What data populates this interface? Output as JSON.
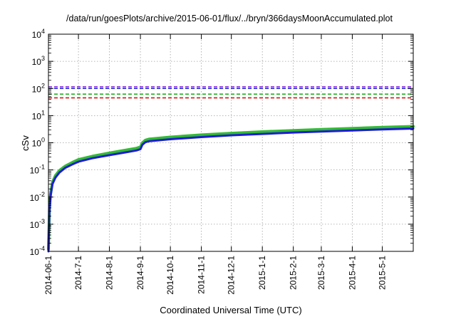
{
  "chart_data": {
    "type": "line",
    "title": "/data/run/goesPlots/archive/2015-06-01/flux/../bryn/366daysMoonAccumulated.plot",
    "xlabel": "Coordinated Universal Time (UTC)",
    "ylabel": "cSv",
    "yscale": "log",
    "ylim": [
      0.0001,
      10000
    ],
    "y_ticks": [
      {
        "base": "10",
        "exp": "-4",
        "value": 0.0001
      },
      {
        "base": "10",
        "exp": "-3",
        "value": 0.001
      },
      {
        "base": "10",
        "exp": "-2",
        "value": 0.01
      },
      {
        "base": "10",
        "exp": "-1",
        "value": 0.1
      },
      {
        "base": "10",
        "exp": "0",
        "value": 1
      },
      {
        "base": "10",
        "exp": "1",
        "value": 10
      },
      {
        "base": "10",
        "exp": "2",
        "value": 100
      },
      {
        "base": "10",
        "exp": "3",
        "value": 1000
      },
      {
        "base": "10",
        "exp": "4",
        "value": 10000
      }
    ],
    "xlim": [
      "2014-06-01",
      "2015-06-01"
    ],
    "x_ticks": [
      "2014-06-1",
      "2014-7-1",
      "2014-8-1",
      "2014-9-1",
      "2014-10-1",
      "2014-11-1",
      "2014-12-1",
      "2015-1-1",
      "2015-2-1",
      "2015-3-1",
      "2015-4-1",
      "2015-5-1"
    ],
    "x_tick_dates": [
      "2014-06-01",
      "2014-07-01",
      "2014-08-01",
      "2014-09-01",
      "2014-10-01",
      "2014-11-01",
      "2014-12-01",
      "2015-01-01",
      "2015-02-01",
      "2015-03-01",
      "2015-04-01",
      "2015-05-01"
    ],
    "grid": true,
    "reference_lines": [
      {
        "y": 115,
        "color": "#8a2be2",
        "style": "dashed"
      },
      {
        "y": 100,
        "color": "#1f1fcf",
        "style": "dashed"
      },
      {
        "y": 62,
        "color": "#22b022",
        "style": "dashed"
      },
      {
        "y": 45,
        "color": "#dd1111",
        "style": "dashed"
      }
    ],
    "series": [
      {
        "color": "#33bb33",
        "x": [
          "2014-06-01",
          "2014-06-02",
          "2014-06-03",
          "2014-06-05",
          "2014-06-08",
          "2014-06-12",
          "2014-06-18",
          "2014-06-25",
          "2014-07-01",
          "2014-07-15",
          "2014-08-01",
          "2014-08-15",
          "2014-08-28",
          "2014-09-01",
          "2014-09-03",
          "2014-09-06",
          "2014-09-10",
          "2014-10-01",
          "2014-11-01",
          "2014-12-01",
          "2015-01-01",
          "2015-02-01",
          "2015-03-01",
          "2015-04-01",
          "2015-05-01",
          "2015-06-01"
        ],
        "y": [
          0.00012,
          0.0035,
          0.012,
          0.035,
          0.062,
          0.095,
          0.14,
          0.19,
          0.24,
          0.32,
          0.42,
          0.52,
          0.63,
          0.7,
          1.0,
          1.25,
          1.38,
          1.62,
          1.95,
          2.25,
          2.55,
          2.85,
          3.1,
          3.4,
          3.7,
          4.0
        ]
      },
      {
        "color": "#1f1fcf",
        "x": [
          "2014-06-01",
          "2014-06-02",
          "2014-06-03",
          "2014-06-05",
          "2014-06-08",
          "2014-06-12",
          "2014-06-18",
          "2014-06-25",
          "2014-07-01",
          "2014-07-15",
          "2014-08-01",
          "2014-08-15",
          "2014-08-28",
          "2014-09-01",
          "2014-09-03",
          "2014-09-06",
          "2014-09-10",
          "2014-10-01",
          "2014-11-01",
          "2014-12-01",
          "2015-01-01",
          "2015-02-01",
          "2015-03-01",
          "2015-04-01",
          "2015-05-01",
          "2015-06-01"
        ],
        "y": [
          0.0001,
          0.003,
          0.01,
          0.03,
          0.052,
          0.08,
          0.12,
          0.16,
          0.2,
          0.27,
          0.35,
          0.43,
          0.52,
          0.58,
          0.85,
          1.05,
          1.15,
          1.35,
          1.62,
          1.88,
          2.12,
          2.38,
          2.6,
          2.85,
          3.1,
          3.35
        ]
      }
    ]
  }
}
